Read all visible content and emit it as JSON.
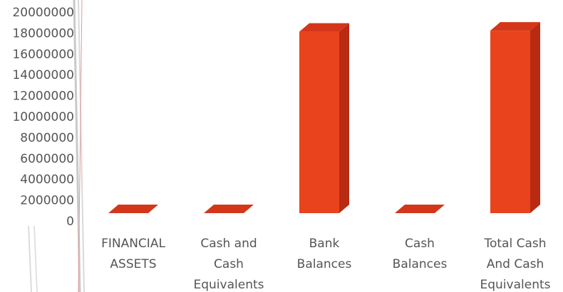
{
  "chart_data": {
    "type": "bar3d",
    "categories": [
      "FINANCIAL ASSETS",
      "Cash and Cash Equivalents",
      "Bank Balances",
      "Cash Balances",
      "Total Cash And Cash Equivalents"
    ],
    "values": [
      0,
      0,
      18600000,
      100000,
      18700000
    ],
    "color": "#e8431c",
    "ylim": [
      0,
      20000000
    ],
    "yticks": [
      0,
      2000000,
      4000000,
      6000000,
      8000000,
      10000000,
      12000000,
      14000000,
      16000000,
      18000000,
      20000000
    ]
  }
}
